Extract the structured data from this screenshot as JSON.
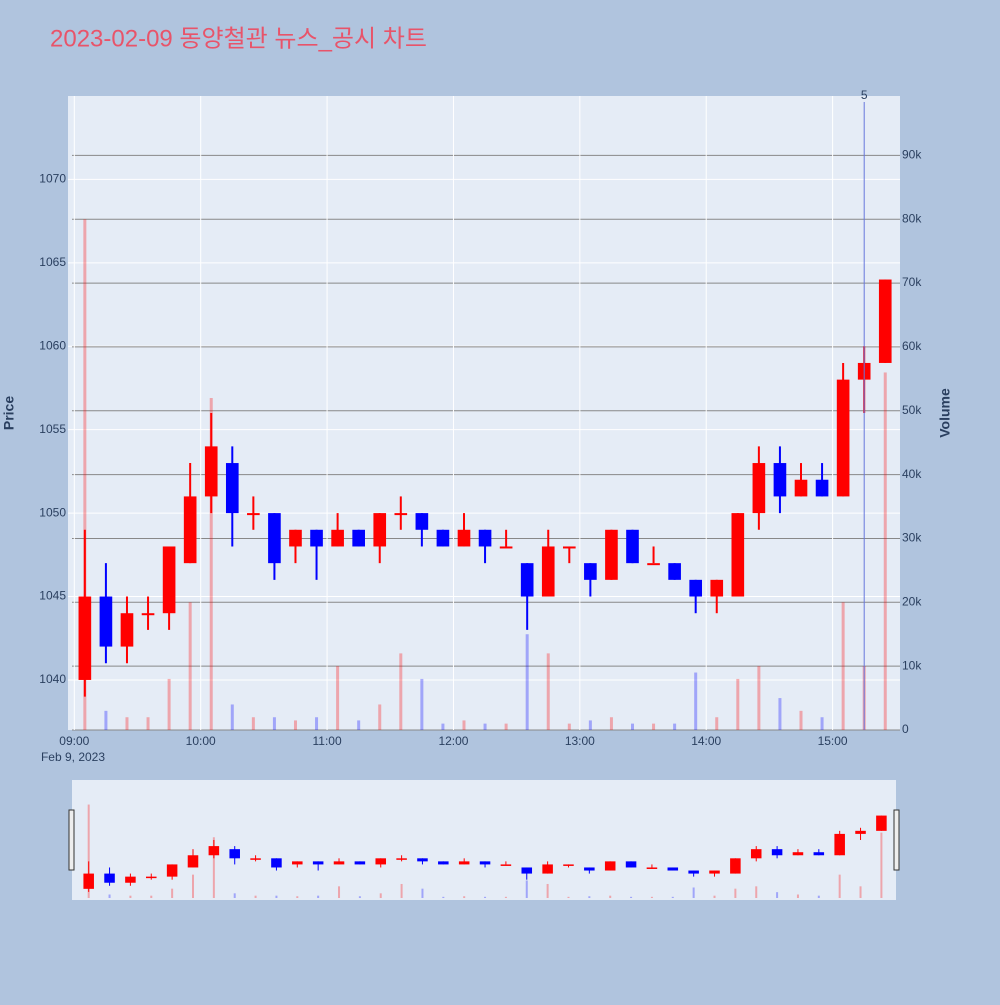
{
  "chart_data": {
    "type": "candlestick",
    "title": "2023-02-09 동양철관 뉴스_공시 차트",
    "y_label": "Price",
    "y2_label": "Volume",
    "x_date_label": "Feb 9, 2023",
    "x": [
      "09:00",
      "09:10",
      "09:20",
      "09:30",
      "09:40",
      "09:50",
      "10:00",
      "10:10",
      "10:20",
      "10:30",
      "10:40",
      "10:50",
      "11:00",
      "11:10",
      "11:20",
      "11:30",
      "11:40",
      "11:50",
      "12:00",
      "12:10",
      "12:20",
      "12:30",
      "12:40",
      "12:50",
      "13:00",
      "13:10",
      "13:20",
      "13:30",
      "13:40",
      "13:50",
      "14:00",
      "14:10",
      "14:20",
      "14:30",
      "14:40",
      "14:50",
      "15:00",
      "15:10",
      "15:20"
    ],
    "open": [
      1040,
      1045,
      1042,
      1044,
      1044,
      1047,
      1051,
      1053,
      1050,
      1050,
      1048,
      1049,
      1048,
      1049,
      1048,
      1050,
      1050,
      1049,
      1048,
      1049,
      1048,
      1047,
      1045,
      1048,
      1047,
      1046,
      1049,
      1047,
      1047,
      1046,
      1045,
      1045,
      1050,
      1053,
      1051,
      1052,
      1051,
      1058,
      1059
    ],
    "high": [
      1049,
      1047,
      1045,
      1045,
      1048,
      1053,
      1056,
      1054,
      1051,
      1050,
      1049,
      1049,
      1050,
      1049,
      1050,
      1051,
      1050,
      1049,
      1050,
      1049,
      1049,
      1047,
      1049,
      1048,
      1047,
      1049,
      1049,
      1048,
      1047,
      1046,
      1046,
      1050,
      1054,
      1054,
      1053,
      1053,
      1059,
      1060,
      1064
    ],
    "low": [
      1039,
      1041,
      1041,
      1043,
      1043,
      1047,
      1050,
      1048,
      1049,
      1046,
      1047,
      1046,
      1048,
      1048,
      1047,
      1049,
      1048,
      1048,
      1048,
      1047,
      1048,
      1043,
      1045,
      1047,
      1045,
      1046,
      1047,
      1047,
      1046,
      1044,
      1044,
      1045,
      1049,
      1050,
      1051,
      1051,
      1051,
      1056,
      1059
    ],
    "close": [
      1045,
      1042,
      1044,
      1044,
      1048,
      1051,
      1054,
      1050,
      1050,
      1047,
      1049,
      1048,
      1049,
      1048,
      1050,
      1050,
      1049,
      1048,
      1049,
      1048,
      1048,
      1045,
      1048,
      1048,
      1046,
      1049,
      1047,
      1047,
      1046,
      1045,
      1046,
      1050,
      1053,
      1051,
      1052,
      1051,
      1058,
      1059,
      1064
    ],
    "volume": [
      80000,
      3000,
      2000,
      2000,
      8000,
      20000,
      52000,
      4000,
      2000,
      2000,
      1500,
      2000,
      10000,
      1500,
      4000,
      12000,
      8000,
      1000,
      1500,
      1000,
      1000,
      15000,
      12000,
      1000,
      1500,
      2000,
      1000,
      1000,
      1000,
      9000,
      2000,
      8000,
      10000,
      5000,
      3000,
      2000,
      20000,
      10000,
      56000
    ],
    "up_color": "#ff0000",
    "down_color": "#0000ff",
    "xlim": [
      "08:57",
      "15:32"
    ],
    "xticks": [
      "09:00",
      "10:00",
      "11:00",
      "12:00",
      "13:00",
      "14:00",
      "15:00"
    ],
    "ylim": [
      1037,
      1075
    ],
    "yticks": [
      1040,
      1045,
      1050,
      1055,
      1060,
      1065,
      1070
    ],
    "y2lim": [
      0,
      99300
    ],
    "y2ticks": [
      0,
      {
        "value": 10000,
        "label": "10k"
      },
      {
        "value": 20000,
        "label": "20k"
      },
      {
        "value": 30000,
        "label": "30k"
      },
      {
        "value": 40000,
        "label": "40k"
      },
      {
        "value": 50000,
        "label": "50k"
      },
      {
        "value": 60000,
        "label": "60k"
      },
      {
        "value": 70000,
        "label": "70k"
      },
      {
        "value": 80000,
        "label": "80k"
      },
      {
        "value": 90000,
        "label": "90k"
      }
    ],
    "annotation": {
      "x": "15:15",
      "text": "5"
    }
  }
}
